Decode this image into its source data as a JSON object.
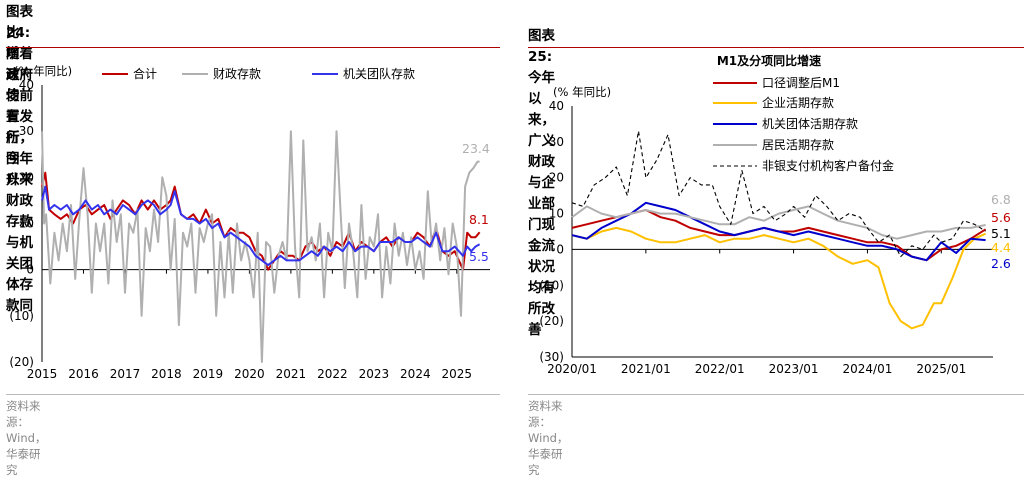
{
  "left": {
    "title_line1": "图表24:  随着政府债前置发行，今年以来财政存款与机关团体存款同",
    "title_line2": "比增速均有所回升",
    "source": "资料来源：Wind，华泰研究"
  },
  "right": {
    "title_line1": "图表25:  今年以来，广义财政与企业部门现金流状况均有所改善",
    "source": "资料来源：Wind，华泰研究"
  },
  "colors": {
    "red": "#c00000",
    "gray": "#b0b0b0",
    "blue": "#3333ee",
    "yellow": "#ffc000",
    "darkblue": "#0000cc",
    "black": "#000000",
    "accent_rule": "#b00000"
  },
  "chart_data": [
    {
      "type": "line",
      "ylabel": "(% 年同比)",
      "ylim": [
        -20,
        40
      ],
      "yticks": [
        -20,
        -10,
        0,
        10,
        20,
        30,
        40
      ],
      "ytick_labels": [
        "(20)",
        "(10)",
        "0",
        "10",
        "20",
        "30",
        "40"
      ],
      "xlim": [
        2015,
        2025.8
      ],
      "xticks": [
        2015,
        2016,
        2017,
        2018,
        2019,
        2020,
        2021,
        2022,
        2023,
        2024,
        2025
      ],
      "xtick_labels": [
        "2015",
        "2016",
        "2017",
        "2018",
        "2019",
        "2020",
        "2021",
        "2022",
        "2023",
        "2024",
        "2025"
      ],
      "legend_position": "top",
      "series": [
        {
          "name": "合计",
          "color": "#c00000",
          "x": [
            2015.0,
            2015.08,
            2015.17,
            2015.3,
            2015.45,
            2015.6,
            2015.75,
            2015.9,
            2016.05,
            2016.2,
            2016.35,
            2016.5,
            2016.65,
            2016.8,
            2016.95,
            2017.1,
            2017.25,
            2017.4,
            2017.55,
            2017.7,
            2017.85,
            2018.0,
            2018.1,
            2018.2,
            2018.35,
            2018.5,
            2018.65,
            2018.8,
            2018.95,
            2019.1,
            2019.25,
            2019.4,
            2019.55,
            2019.7,
            2019.85,
            2020.0,
            2020.15,
            2020.3,
            2020.45,
            2020.6,
            2020.75,
            2020.9,
            2021.05,
            2021.2,
            2021.35,
            2021.5,
            2021.65,
            2021.8,
            2021.95,
            2022.1,
            2022.25,
            2022.4,
            2022.55,
            2022.7,
            2022.85,
            2023.0,
            2023.15,
            2023.3,
            2023.45,
            2023.6,
            2023.75,
            2023.9,
            2024.05,
            2024.2,
            2024.35,
            2024.5,
            2024.65,
            2024.8,
            2024.95,
            2025.05,
            2025.15,
            2025.25,
            2025.35,
            2025.45,
            2025.55
          ],
          "y": [
            18,
            21,
            13,
            12,
            11,
            12,
            10,
            13,
            14,
            12,
            13,
            14,
            11,
            13,
            15,
            14,
            12,
            15,
            13,
            15,
            13,
            14,
            15,
            18,
            12,
            11,
            12,
            10,
            13,
            10,
            11,
            7,
            9,
            8,
            8,
            7,
            4,
            3,
            0,
            2,
            4,
            3,
            3,
            2,
            5,
            6,
            4,
            5,
            3,
            6,
            5,
            8,
            4,
            6,
            5,
            4,
            6,
            7,
            5,
            7,
            6,
            6,
            8,
            7,
            5,
            9,
            4,
            3,
            4,
            2,
            0,
            8,
            7,
            7,
            8.1
          ]
        },
        {
          "name": "财政存款",
          "color": "#b0b0b0",
          "x": [
            2015.0,
            2015.05,
            2015.1,
            2015.2,
            2015.3,
            2015.4,
            2015.5,
            2015.6,
            2015.7,
            2015.8,
            2015.9,
            2016.0,
            2016.1,
            2016.2,
            2016.3,
            2016.4,
            2016.5,
            2016.6,
            2016.7,
            2016.8,
            2016.9,
            2017.0,
            2017.1,
            2017.2,
            2017.3,
            2017.4,
            2017.5,
            2017.6,
            2017.7,
            2017.8,
            2017.9,
            2018.0,
            2018.1,
            2018.2,
            2018.3,
            2018.4,
            2018.5,
            2018.6,
            2018.7,
            2018.8,
            2018.9,
            2019.0,
            2019.1,
            2019.2,
            2019.3,
            2019.4,
            2019.5,
            2019.6,
            2019.7,
            2019.8,
            2019.9,
            2020.0,
            2020.1,
            2020.2,
            2020.3,
            2020.4,
            2020.5,
            2020.6,
            2020.7,
            2020.8,
            2020.9,
            2021.0,
            2021.1,
            2021.2,
            2021.3,
            2021.4,
            2021.5,
            2021.6,
            2021.7,
            2021.8,
            2021.9,
            2022.0,
            2022.1,
            2022.2,
            2022.3,
            2022.4,
            2022.5,
            2022.6,
            2022.7,
            2022.8,
            2022.9,
            2023.0,
            2023.1,
            2023.2,
            2023.3,
            2023.4,
            2023.5,
            2023.6,
            2023.7,
            2023.8,
            2023.9,
            2024.0,
            2024.1,
            2024.2,
            2024.3,
            2024.4,
            2024.5,
            2024.6,
            2024.7,
            2024.8,
            2024.9,
            2025.0,
            2025.1,
            2025.2,
            2025.3,
            2025.4,
            2025.5,
            2025.55
          ],
          "y": [
            30,
            10,
            12,
            -3,
            8,
            2,
            10,
            4,
            14,
            -2,
            11,
            22,
            12,
            -5,
            10,
            4,
            10,
            -3,
            15,
            6,
            12,
            -5,
            10,
            8,
            13,
            -10,
            9,
            4,
            13,
            6,
            20,
            16,
            0,
            11,
            -12,
            8,
            5,
            10,
            -5,
            9,
            6,
            10,
            12,
            -10,
            6,
            -6,
            8,
            -5,
            10,
            2,
            6,
            2,
            -6,
            8,
            -20,
            6,
            5,
            -5,
            3,
            6,
            2,
            30,
            5,
            -6,
            28,
            4,
            7,
            2,
            10,
            -6,
            8,
            4,
            30,
            12,
            -4,
            10,
            4,
            -6,
            14,
            -2,
            7,
            5,
            12,
            -6,
            5,
            -3,
            10,
            3,
            8,
            1,
            7,
            0,
            4,
            -2,
            17,
            5,
            10,
            2,
            9,
            -1,
            10,
            5,
            -10,
            18,
            21,
            22,
            23.4,
            23.4
          ]
        },
        {
          "name": "机关团队存款",
          "color": "#3333ee",
          "x": [
            2015.0,
            2015.08,
            2015.17,
            2015.3,
            2015.45,
            2015.6,
            2015.75,
            2015.9,
            2016.05,
            2016.2,
            2016.35,
            2016.5,
            2016.65,
            2016.8,
            2016.95,
            2017.1,
            2017.25,
            2017.4,
            2017.55,
            2017.7,
            2017.85,
            2018.0,
            2018.1,
            2018.2,
            2018.35,
            2018.5,
            2018.65,
            2018.8,
            2018.95,
            2019.1,
            2019.25,
            2019.4,
            2019.55,
            2019.7,
            2019.85,
            2020.0,
            2020.15,
            2020.3,
            2020.45,
            2020.6,
            2020.75,
            2020.9,
            2021.05,
            2021.2,
            2021.35,
            2021.5,
            2021.65,
            2021.8,
            2021.95,
            2022.1,
            2022.25,
            2022.4,
            2022.55,
            2022.7,
            2022.85,
            2023.0,
            2023.15,
            2023.3,
            2023.45,
            2023.6,
            2023.75,
            2023.9,
            2024.05,
            2024.2,
            2024.35,
            2024.5,
            2024.65,
            2024.8,
            2024.95,
            2025.05,
            2025.15,
            2025.25,
            2025.35,
            2025.45,
            2025.55
          ],
          "y": [
            15,
            18,
            13,
            14,
            13,
            14,
            12,
            13,
            15,
            13,
            14,
            12,
            13,
            12,
            14,
            13,
            12,
            14,
            15,
            14,
            12,
            13,
            14,
            17,
            12,
            11,
            11,
            10,
            11,
            9,
            10,
            7,
            8,
            7,
            6,
            5,
            3,
            2,
            1,
            2,
            3,
            2,
            2,
            2,
            3,
            4,
            3,
            5,
            4,
            5,
            4,
            6,
            4,
            5,
            5,
            4,
            6,
            6,
            6,
            7,
            6,
            6,
            7,
            6,
            5,
            8,
            4,
            4,
            5,
            4,
            3,
            5,
            4,
            5,
            5.5
          ]
        }
      ],
      "annotations": [
        {
          "text": "23.4",
          "color": "#b0b0b0"
        },
        {
          "text": "8.1",
          "color": "#c00000"
        },
        {
          "text": "5.5",
          "color": "#3333ee"
        }
      ]
    },
    {
      "type": "line",
      "title": "M1及分项同比增速",
      "ylabel": "(% 年同比)",
      "ylim": [
        -30,
        40
      ],
      "yticks": [
        -30,
        -20,
        -10,
        0,
        10,
        20,
        30,
        40
      ],
      "ytick_labels": [
        "(30)",
        "(20)",
        "(10)",
        "0",
        "10",
        "20",
        "30",
        "40"
      ],
      "xlim": [
        2020.0,
        2025.7
      ],
      "xticks": [
        2020.0,
        2021.0,
        2022.0,
        2023.0,
        2024.0,
        2025.0
      ],
      "xtick_labels": [
        "2020/01",
        "2021/01",
        "2022/01",
        "2023/01",
        "2024/01",
        "2025/01"
      ],
      "legend_position": "top-left",
      "series": [
        {
          "name": "口径调整后M1",
          "color": "#c00000",
          "x": [
            2020.0,
            2020.2,
            2020.4,
            2020.6,
            2020.8,
            2021.0,
            2021.2,
            2021.4,
            2021.6,
            2021.8,
            2022.0,
            2022.2,
            2022.4,
            2022.6,
            2022.8,
            2023.0,
            2023.2,
            2023.4,
            2023.6,
            2023.8,
            2024.0,
            2024.2,
            2024.4,
            2024.6,
            2024.8,
            2025.0,
            2025.2,
            2025.4,
            2025.6
          ],
          "y": [
            6,
            7,
            8,
            9,
            10,
            11,
            9,
            8,
            6,
            5,
            4,
            4,
            5,
            6,
            5,
            5,
            6,
            5,
            4,
            3,
            2,
            2,
            1,
            -2,
            -3,
            0,
            1,
            3,
            5.6
          ]
        },
        {
          "name": "企业活期存款",
          "color": "#ffc000",
          "x": [
            2020.0,
            2020.2,
            2020.4,
            2020.6,
            2020.8,
            2021.0,
            2021.2,
            2021.4,
            2021.6,
            2021.8,
            2022.0,
            2022.2,
            2022.4,
            2022.6,
            2022.8,
            2023.0,
            2023.2,
            2023.4,
            2023.6,
            2023.8,
            2024.0,
            2024.15,
            2024.3,
            2024.45,
            2024.6,
            2024.75,
            2024.9,
            2025.0,
            2025.15,
            2025.3,
            2025.45,
            2025.6
          ],
          "y": [
            4,
            3,
            5,
            6,
            5,
            3,
            2,
            2,
            3,
            4,
            2,
            3,
            3,
            4,
            3,
            2,
            3,
            1,
            -2,
            -4,
            -3,
            -5,
            -15,
            -20,
            -22,
            -21,
            -15,
            -15,
            -8,
            0,
            3,
            4.4
          ]
        },
        {
          "name": "机关团体活期存款",
          "color": "#0000cc",
          "x": [
            2020.0,
            2020.2,
            2020.4,
            2020.6,
            2020.8,
            2021.0,
            2021.2,
            2021.4,
            2021.6,
            2021.8,
            2022.0,
            2022.2,
            2022.4,
            2022.6,
            2022.8,
            2023.0,
            2023.2,
            2023.4,
            2023.6,
            2023.8,
            2024.0,
            2024.2,
            2024.4,
            2024.6,
            2024.8,
            2025.0,
            2025.2,
            2025.4,
            2025.6
          ],
          "y": [
            4,
            3,
            6,
            8,
            10,
            13,
            12,
            11,
            9,
            7,
            5,
            4,
            5,
            6,
            5,
            4,
            5,
            4,
            3,
            2,
            1,
            1,
            0,
            -2,
            -3,
            2,
            -1,
            3,
            2.6
          ]
        },
        {
          "name": "居民活期存款",
          "color": "#b0b0b0",
          "x": [
            2020.0,
            2020.2,
            2020.4,
            2020.6,
            2020.8,
            2021.0,
            2021.2,
            2021.4,
            2021.6,
            2021.8,
            2022.0,
            2022.2,
            2022.4,
            2022.6,
            2022.8,
            2023.0,
            2023.2,
            2023.4,
            2023.6,
            2023.8,
            2024.0,
            2024.2,
            2024.4,
            2024.6,
            2024.8,
            2025.0,
            2025.2,
            2025.4,
            2025.6
          ],
          "y": [
            9,
            12,
            10,
            9,
            10,
            11,
            10,
            10,
            9,
            8,
            7,
            7,
            9,
            8,
            10,
            11,
            12,
            10,
            8,
            7,
            6,
            4,
            3,
            4,
            5,
            5,
            6,
            6,
            6.8
          ]
        },
        {
          "name": "非银支付机构客户备付金",
          "color": "#000000",
          "dash": "4,3",
          "x": [
            2020.0,
            2020.15,
            2020.3,
            2020.45,
            2020.6,
            2020.75,
            2020.9,
            2021.0,
            2021.15,
            2021.3,
            2021.45,
            2021.6,
            2021.75,
            2021.9,
            2022.0,
            2022.15,
            2022.3,
            2022.45,
            2022.6,
            2022.75,
            2022.9,
            2023.0,
            2023.15,
            2023.3,
            2023.45,
            2023.6,
            2023.75,
            2023.9,
            2024.0,
            2024.15,
            2024.3,
            2024.45,
            2024.6,
            2024.75,
            2024.9,
            2025.0,
            2025.15,
            2025.3,
            2025.45,
            2025.6
          ],
          "y": [
            13,
            12,
            18,
            20,
            23,
            15,
            33,
            20,
            25,
            32,
            15,
            20,
            18,
            18,
            12,
            7,
            22,
            10,
            12,
            8,
            10,
            12,
            9,
            15,
            12,
            8,
            10,
            9,
            6,
            2,
            4,
            -2,
            1,
            0,
            4,
            2,
            3,
            8,
            7,
            5.1
          ]
        }
      ],
      "annotations": [
        {
          "text": "6.8",
          "color": "#b0b0b0"
        },
        {
          "text": "5.6",
          "color": "#c00000"
        },
        {
          "text": "5.1",
          "color": "#000000"
        },
        {
          "text": "4.4",
          "color": "#ffc000"
        },
        {
          "text": "2.6",
          "color": "#0000cc"
        }
      ]
    }
  ]
}
